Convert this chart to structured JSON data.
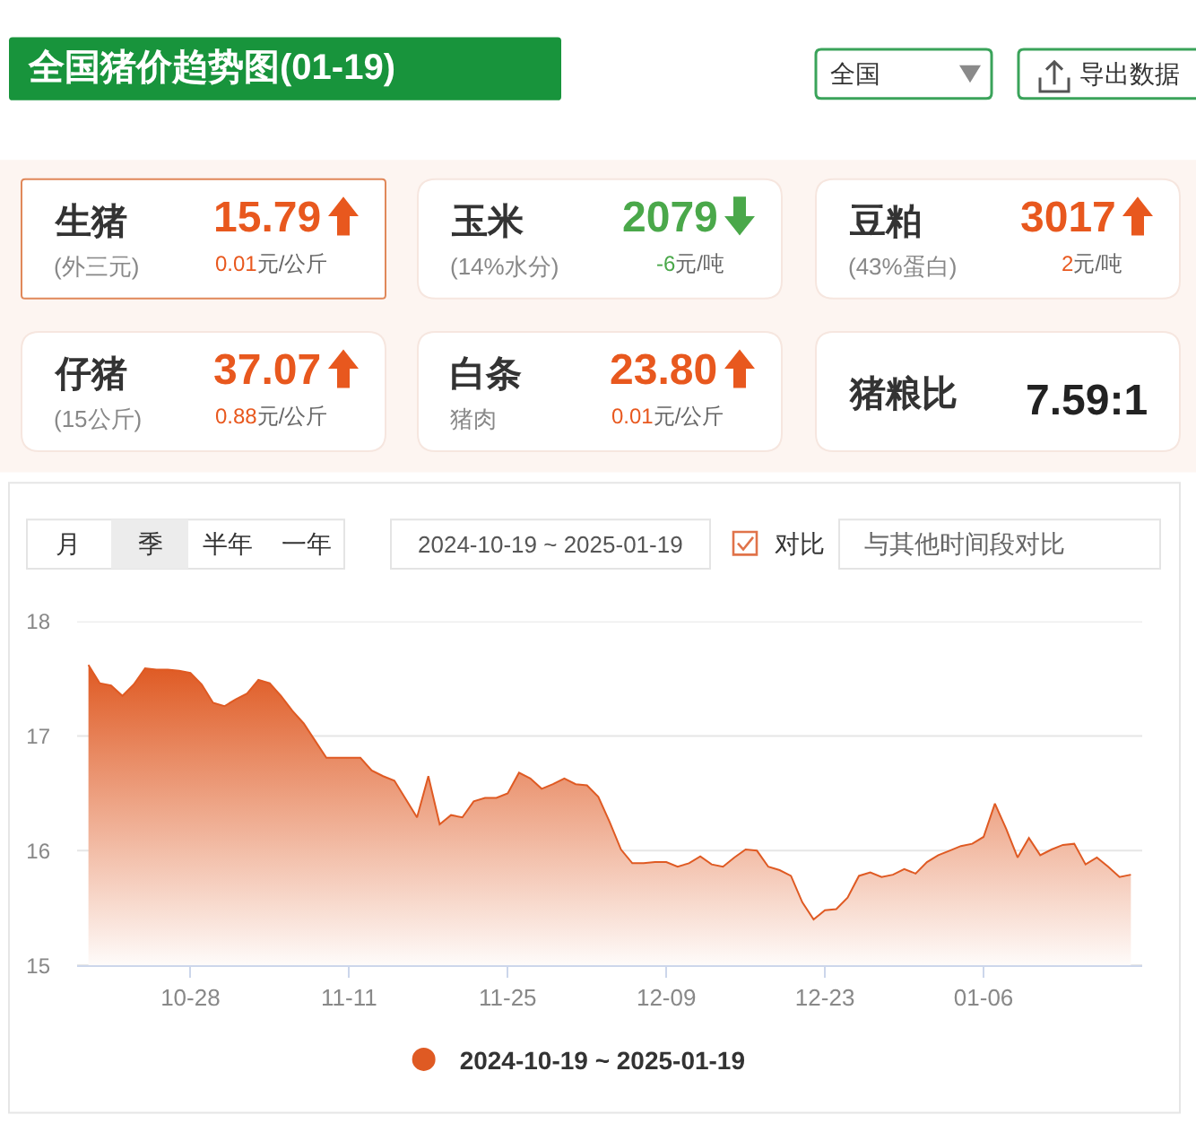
{
  "chart_data": [
    {
      "type": "other",
      "title": "全国猪价趋势图(01-19)",
      "annotations": [
        "全国",
        "导出数据",
        "生猪",
        "(外三元)",
        "15.79",
        "0.01元/公斤",
        "玉米",
        "(14%水分)",
        "2079",
        "-6元/吨",
        "豆粕",
        "(43%蛋白)",
        "3017",
        "2元/吨",
        "仔猪",
        "(15公斤)",
        "37.07",
        "0.88元/公斤",
        "白条",
        "猪肉",
        "23.80",
        "0.01元/公斤",
        "猪粮比",
        "7.59:1"
      ]
    },
    {
      "type": "area",
      "x": [
        "2024-10-19",
        "2024-10-20",
        "2024-10-21",
        "2024-10-22",
        "2024-10-23",
        "2024-10-24",
        "2024-10-25",
        "2024-10-26",
        "2024-10-27",
        "2024-10-28",
        "2024-10-29",
        "2024-10-30",
        "2024-10-31",
        "2024-11-01",
        "2024-11-02",
        "2024-11-03",
        "2024-11-04",
        "2024-11-05",
        "2024-11-06",
        "2024-11-07",
        "2024-11-08",
        "2024-11-09",
        "2024-11-10",
        "2024-11-11",
        "2024-11-12",
        "2024-11-13",
        "2024-11-14",
        "2024-11-15",
        "2024-11-16",
        "2024-11-17",
        "2024-11-18",
        "2024-11-19",
        "2024-11-20",
        "2024-11-21",
        "2024-11-22",
        "2024-11-23",
        "2024-11-24",
        "2024-11-25",
        "2024-11-26",
        "2024-11-27",
        "2024-11-28",
        "2024-11-29",
        "2024-11-30",
        "2024-12-01",
        "2024-12-02",
        "2024-12-03",
        "2024-12-04",
        "2024-12-05",
        "2024-12-06",
        "2024-12-07",
        "2024-12-08",
        "2024-12-09",
        "2024-12-10",
        "2024-12-11",
        "2024-12-12",
        "2024-12-13",
        "2024-12-14",
        "2024-12-15",
        "2024-12-16",
        "2024-12-17",
        "2024-12-18",
        "2024-12-19",
        "2024-12-20",
        "2024-12-21",
        "2024-12-22",
        "2024-12-23",
        "2024-12-24",
        "2024-12-25",
        "2024-12-26",
        "2024-12-27",
        "2024-12-28",
        "2024-12-29",
        "2024-12-30",
        "2024-12-31",
        "2025-01-01",
        "2025-01-02",
        "2025-01-03",
        "2025-01-04",
        "2025-01-05",
        "2025-01-06",
        "2025-01-07",
        "2025-01-08",
        "2025-01-09",
        "2025-01-10",
        "2025-01-11",
        "2025-01-12",
        "2025-01-13",
        "2025-01-14",
        "2025-01-15",
        "2025-01-16",
        "2025-01-17",
        "2025-01-18",
        "2025-01-19"
      ],
      "series": [
        {
          "name": "2024-10-19 ~ 2025-01-19",
          "color": "#df5a23",
          "values": [
            17.62,
            17.46,
            17.44,
            17.35,
            17.45,
            17.59,
            17.58,
            17.58,
            17.57,
            17.55,
            17.45,
            17.29,
            17.26,
            17.32,
            17.37,
            17.49,
            17.46,
            17.35,
            17.22,
            17.11,
            16.96,
            16.81,
            16.81,
            16.81,
            16.81,
            16.7,
            16.65,
            16.61,
            16.45,
            16.29,
            16.65,
            16.23,
            16.31,
            16.29,
            16.43,
            16.46,
            16.46,
            16.5,
            16.68,
            16.63,
            16.54,
            16.58,
            16.63,
            16.58,
            16.57,
            16.47,
            16.25,
            16.01,
            15.89,
            15.89,
            15.9,
            15.9,
            15.86,
            15.89,
            15.95,
            15.88,
            15.86,
            15.94,
            16.01,
            16.0,
            15.86,
            15.83,
            15.78,
            15.55,
            15.4,
            15.48,
            15.49,
            15.59,
            15.78,
            15.81,
            15.77,
            15.79,
            15.84,
            15.8,
            15.9,
            15.96,
            16.0,
            16.04,
            16.06,
            16.12,
            16.41,
            16.19,
            15.94,
            16.11,
            15.96,
            16.01,
            16.05,
            16.06,
            15.88,
            15.94,
            15.86,
            15.77,
            15.79
          ]
        }
      ],
      "xlim": [
        "2024-10-18",
        "2025-01-20"
      ],
      "xticks": [
        {
          "value": "2024-10-28",
          "label": "10-28"
        },
        {
          "value": "2024-11-11",
          "label": "11-11"
        },
        {
          "value": "2024-11-25",
          "label": "11-25"
        },
        {
          "value": "2024-12-09",
          "label": "12-09"
        },
        {
          "value": "2024-12-23",
          "label": "12-23"
        },
        {
          "value": "2025-01-06",
          "label": "01-06"
        }
      ],
      "ylim": [
        15,
        18
      ],
      "yticks": [
        15,
        16,
        17,
        18
      ],
      "grid": "y",
      "legend": "bottom",
      "annotations": [
        "月",
        "季",
        "半年",
        "一年",
        "2024-10-19 ~ 2025-01-19",
        "对比",
        "与其他时间段对比"
      ]
    }
  ]
}
